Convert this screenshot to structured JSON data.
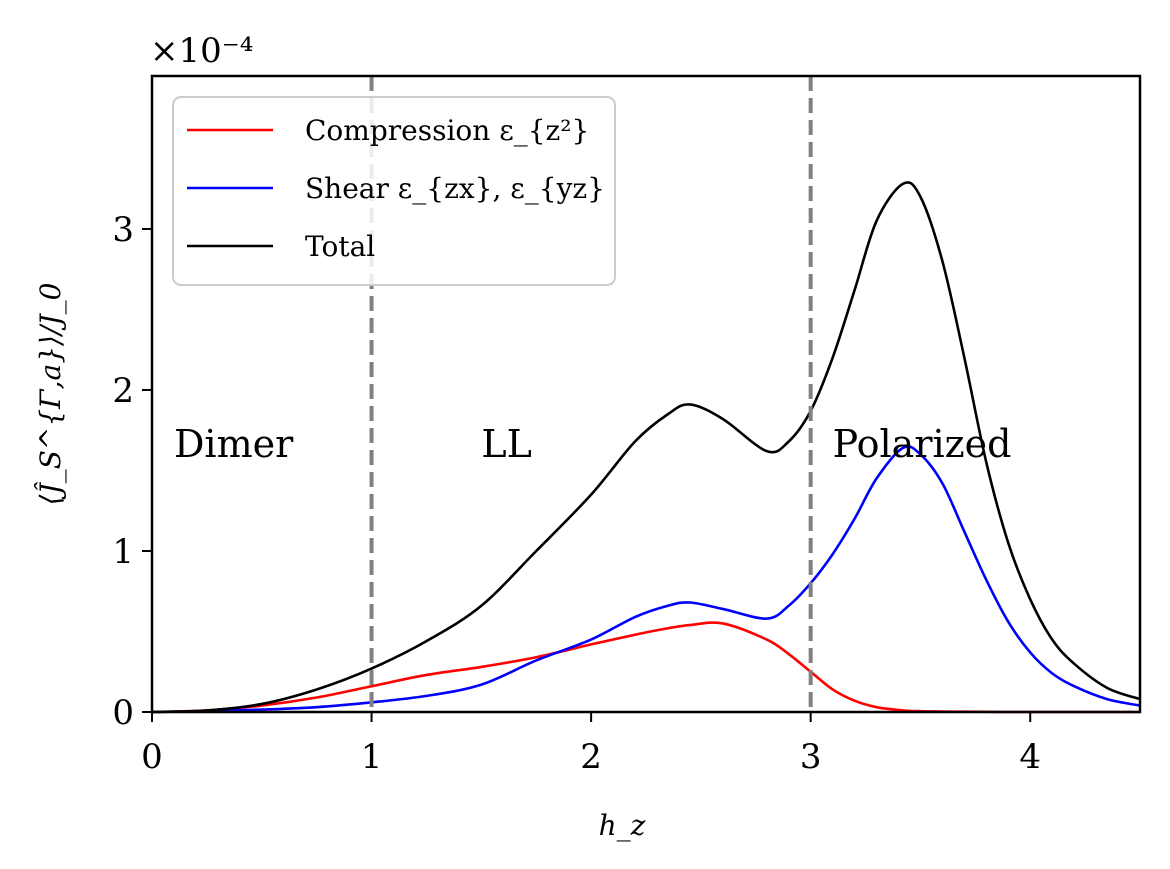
{
  "chart_data": {
    "type": "line",
    "xlabel": "h_z",
    "ylabel": "⟨Ĵ_S^{Γ,a}⟩/J_0",
    "y_offset_text": "×10⁻⁴",
    "xlim": [
      0,
      4.5
    ],
    "ylim": [
      0,
      3.95
    ],
    "xticks": [
      "0",
      "1",
      "2",
      "3",
      "4"
    ],
    "yticks": [
      "0",
      "1",
      "2",
      "3"
    ],
    "grid": false,
    "legend_position": "top-left",
    "vlines": [
      1,
      3
    ],
    "vline_color": "#808080",
    "annotations": [
      {
        "text": "Dimer",
        "x": 0.1,
        "y": 1.67
      },
      {
        "text": "LL",
        "x": 1.5,
        "y": 1.67
      },
      {
        "text": "Polarized",
        "x": 3.1,
        "y": 1.67
      }
    ],
    "x": [
      0,
      0.25,
      0.5,
      0.75,
      1,
      1.25,
      1.5,
      1.75,
      2,
      2.2,
      2.35,
      2.45,
      2.6,
      2.8,
      2.9,
      3.0,
      3.1,
      3.2,
      3.3,
      3.42,
      3.5,
      3.6,
      3.7,
      3.8,
      3.9,
      4.0,
      4.1,
      4.2,
      4.35,
      4.5
    ],
    "series": [
      {
        "name": "Compression ε_{z²}",
        "color": "#ff0000",
        "values": [
          0,
          0.01,
          0.04,
          0.09,
          0.16,
          0.23,
          0.28,
          0.34,
          0.42,
          0.48,
          0.52,
          0.54,
          0.55,
          0.45,
          0.36,
          0.25,
          0.14,
          0.07,
          0.03,
          0.01,
          0.005,
          0.003,
          0.002,
          0.001,
          0,
          0,
          0,
          0,
          0,
          0
        ]
      },
      {
        "name": "Shear ε_{zx}, ε_{yz}",
        "color": "#0000ff",
        "values": [
          0,
          0.005,
          0.015,
          0.03,
          0.06,
          0.1,
          0.17,
          0.32,
          0.45,
          0.59,
          0.66,
          0.68,
          0.64,
          0.58,
          0.66,
          0.8,
          0.98,
          1.2,
          1.45,
          1.64,
          1.6,
          1.42,
          1.12,
          0.82,
          0.56,
          0.37,
          0.24,
          0.16,
          0.08,
          0.04
        ]
      },
      {
        "name": "Total",
        "color": "#000000",
        "values": [
          0,
          0.01,
          0.05,
          0.14,
          0.27,
          0.44,
          0.66,
          1.0,
          1.35,
          1.68,
          1.85,
          1.91,
          1.82,
          1.62,
          1.68,
          1.87,
          2.2,
          2.62,
          3.05,
          3.28,
          3.2,
          2.8,
          2.2,
          1.55,
          1.05,
          0.7,
          0.45,
          0.3,
          0.15,
          0.08
        ]
      }
    ]
  }
}
